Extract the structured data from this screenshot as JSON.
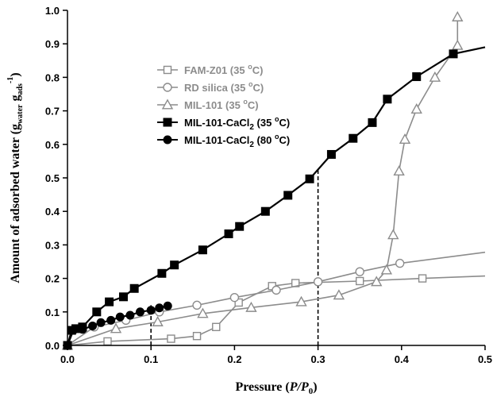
{
  "chart_data": {
    "type": "scatter",
    "xlabel": {
      "main": "Pressure (",
      "italic": "P/P",
      "sub": "0",
      "tail": ")"
    },
    "ylabel": {
      "main": "Amount of adsorbed water (g",
      "sub1": "water",
      "mid": " g",
      "sub2": "ads",
      "sup": "-1",
      "tail": ")"
    },
    "xlim": [
      0,
      0.5
    ],
    "ylim": [
      0,
      1.0
    ],
    "xticks": [
      "0.0",
      "0.1",
      "0.2",
      "0.3",
      "0.4",
      "0.5"
    ],
    "yticks": [
      "0.0",
      "0.1",
      "0.2",
      "0.3",
      "0.4",
      "0.5",
      "0.6",
      "0.7",
      "0.8",
      "0.9",
      "1.0"
    ],
    "grid": false,
    "legend_position": "center-left",
    "reference_lines": [
      {
        "x": 0.3,
        "y_top": 0.53,
        "style": "dashed"
      },
      {
        "x": 0.1,
        "y_top": 0.12,
        "style": "dashed"
      }
    ],
    "series": [
      {
        "name": "FAM-Z01 (35 °C)",
        "label": {
          "text": "FAM-Z01 (35 ",
          "sup": "o",
          "tail": "C)"
        },
        "marker": "square-open",
        "color": "#8c8c8c",
        "points": [
          [
            0.0,
            0.0
          ],
          [
            0.048,
            0.012
          ],
          [
            0.124,
            0.02
          ],
          [
            0.155,
            0.028
          ],
          [
            0.178,
            0.055
          ],
          [
            0.205,
            0.128
          ],
          [
            0.245,
            0.177
          ],
          [
            0.273,
            0.186
          ],
          [
            0.35,
            0.192
          ],
          [
            0.425,
            0.2
          ]
        ],
        "line_extension": [
          [
            0.5,
            0.207
          ]
        ]
      },
      {
        "name": "RD silica (35 °C)",
        "label": {
          "text": "RD silica (35 ",
          "sup": "o",
          "tail": "C)"
        },
        "marker": "circle-open",
        "color": "#8c8c8c",
        "points": [
          [
            0.0,
            0.0
          ],
          [
            0.032,
            0.055
          ],
          [
            0.07,
            0.075
          ],
          [
            0.11,
            0.1
          ],
          [
            0.155,
            0.12
          ],
          [
            0.2,
            0.143
          ],
          [
            0.25,
            0.165
          ],
          [
            0.3,
            0.19
          ],
          [
            0.35,
            0.22
          ],
          [
            0.398,
            0.245
          ]
        ],
        "line_extension": [
          [
            0.5,
            0.278
          ]
        ]
      },
      {
        "name": "MIL-101 (35 °C)",
        "label": {
          "text": "MIL-101 (35 ",
          "sup": "o",
          "tail": "C)"
        },
        "marker": "triangle-open",
        "color": "#8c8c8c",
        "points": [
          [
            0.0,
            0.0
          ],
          [
            0.058,
            0.05
          ],
          [
            0.108,
            0.07
          ],
          [
            0.162,
            0.095
          ],
          [
            0.22,
            0.113
          ],
          [
            0.28,
            0.13
          ],
          [
            0.325,
            0.15
          ],
          [
            0.37,
            0.19
          ],
          [
            0.382,
            0.225
          ],
          [
            0.39,
            0.33
          ],
          [
            0.397,
            0.52
          ],
          [
            0.404,
            0.615
          ],
          [
            0.418,
            0.705
          ],
          [
            0.44,
            0.8
          ],
          [
            0.467,
            0.895
          ],
          [
            0.467,
            0.98
          ]
        ]
      },
      {
        "name": "MIL-101-CaCl2 (35 °C)",
        "label": {
          "text": "MIL-101-CaCl",
          "sub": "2",
          "mid": " (35 ",
          "sup": "o",
          "tail": "C)"
        },
        "marker": "square-filled",
        "color": "#000000",
        "points": [
          [
            0.0,
            0.0
          ],
          [
            0.005,
            0.045
          ],
          [
            0.01,
            0.05
          ],
          [
            0.018,
            0.055
          ],
          [
            0.035,
            0.1
          ],
          [
            0.05,
            0.13
          ],
          [
            0.067,
            0.145
          ],
          [
            0.08,
            0.17
          ],
          [
            0.113,
            0.215
          ],
          [
            0.128,
            0.24
          ],
          [
            0.162,
            0.285
          ],
          [
            0.193,
            0.333
          ],
          [
            0.206,
            0.355
          ],
          [
            0.237,
            0.4
          ],
          [
            0.264,
            0.448
          ],
          [
            0.29,
            0.497
          ],
          [
            0.316,
            0.57
          ],
          [
            0.342,
            0.618
          ],
          [
            0.365,
            0.665
          ],
          [
            0.383,
            0.735
          ],
          [
            0.418,
            0.802
          ],
          [
            0.462,
            0.87
          ]
        ],
        "line_extension": [
          [
            0.5,
            0.89
          ]
        ]
      },
      {
        "name": "MIL-101-CaCl2 (80 °C)",
        "label": {
          "text": "MIL-101-CaCl",
          "sub": "2",
          "mid": " (80 ",
          "sup": "o",
          "tail": "C)"
        },
        "marker": "circle-filled",
        "color": "#000000",
        "points": [
          [
            0.0,
            0.0
          ],
          [
            0.007,
            0.045
          ],
          [
            0.018,
            0.048
          ],
          [
            0.03,
            0.058
          ],
          [
            0.04,
            0.068
          ],
          [
            0.052,
            0.075
          ],
          [
            0.063,
            0.085
          ],
          [
            0.075,
            0.09
          ],
          [
            0.087,
            0.1
          ],
          [
            0.1,
            0.105
          ],
          [
            0.11,
            0.112
          ],
          [
            0.12,
            0.118
          ]
        ]
      }
    ]
  }
}
